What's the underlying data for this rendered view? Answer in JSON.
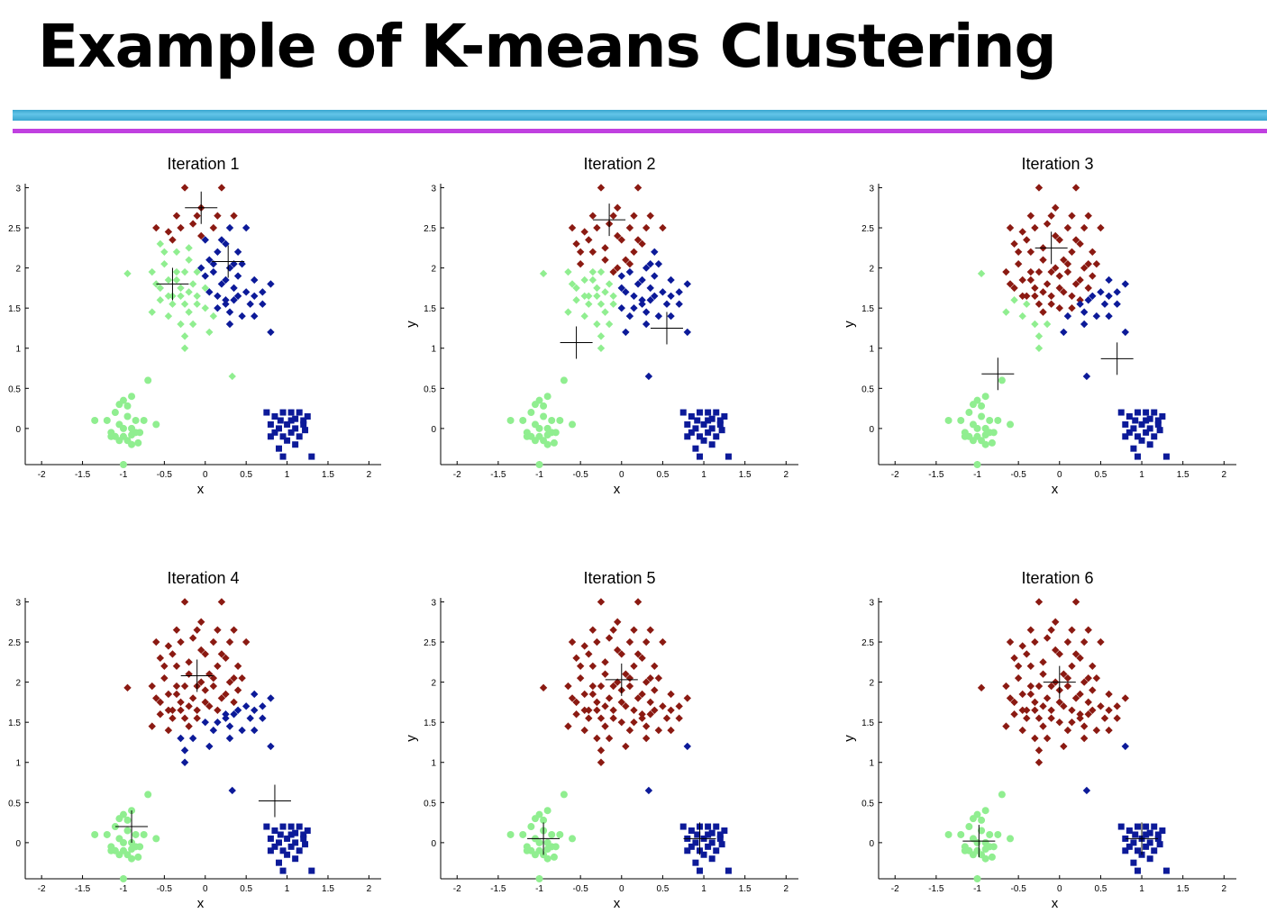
{
  "slide": {
    "title": "Example of K-means Clustering"
  },
  "colors": {
    "cluster_red": "#8b1a12",
    "cluster_blue": "#0c1a99",
    "cluster_green": "#90ee90",
    "rule_blue": "#4ab4dc",
    "rule_magenta": "#c040e0",
    "centroid": "#000000"
  },
  "chart_data": {
    "type": "scatter",
    "xlabel": "x",
    "ylabel": "y",
    "xlim": [
      -2.2,
      2.15
    ],
    "ylim": [
      -0.45,
      3.05
    ],
    "xticks": [
      "-2",
      "-1.5",
      "-1",
      "-0.5",
      "0",
      "0.5",
      "1",
      "1.5",
      "2"
    ],
    "xtick_values": [
      -2,
      -1.5,
      -1,
      -0.5,
      0,
      0.5,
      1,
      1.5,
      2
    ],
    "yticks": [
      "0",
      "0.5",
      "1",
      "1.5",
      "2",
      "2.5",
      "3"
    ],
    "ytick_values": [
      0,
      0.5,
      1,
      1.5,
      2,
      2.5,
      3
    ],
    "points": {
      "big": [
        [
          -0.25,
          3.0
        ],
        [
          0.2,
          3.0
        ],
        [
          -0.6,
          2.5
        ],
        [
          -0.45,
          2.45
        ],
        [
          -0.3,
          2.5
        ],
        [
          -0.15,
          2.55
        ],
        [
          0.1,
          2.5
        ],
        [
          0.35,
          2.65
        ],
        [
          -0.5,
          2.2
        ],
        [
          -0.35,
          2.2
        ],
        [
          0.0,
          2.35
        ],
        [
          0.25,
          2.3
        ],
        [
          -0.65,
          1.95
        ],
        [
          -0.5,
          2.05
        ],
        [
          -0.35,
          1.95
        ],
        [
          -0.2,
          2.1
        ],
        [
          -0.05,
          2.0
        ],
        [
          0.1,
          1.95
        ],
        [
          0.3,
          2.0
        ],
        [
          0.45,
          2.05
        ],
        [
          -0.6,
          1.8
        ],
        [
          -0.45,
          1.85
        ],
        [
          -0.3,
          1.75
        ],
        [
          -0.15,
          1.8
        ],
        [
          0.0,
          1.9
        ],
        [
          0.2,
          1.8
        ],
        [
          0.35,
          1.75
        ],
        [
          0.6,
          1.85
        ],
        [
          -0.55,
          1.6
        ],
        [
          -0.4,
          1.65
        ],
        [
          -0.25,
          1.55
        ],
        [
          -0.1,
          1.65
        ],
        [
          0.05,
          1.7
        ],
        [
          0.25,
          1.6
        ],
        [
          0.4,
          1.65
        ],
        [
          0.55,
          1.55
        ],
        [
          -0.65,
          1.45
        ],
        [
          -0.45,
          1.4
        ],
        [
          -0.2,
          1.45
        ],
        [
          0.0,
          1.5
        ],
        [
          0.15,
          1.5
        ],
        [
          0.3,
          1.45
        ],
        [
          0.5,
          1.7
        ],
        [
          0.7,
          1.7
        ],
        [
          0.8,
          1.8
        ],
        [
          -0.3,
          1.3
        ],
        [
          -0.1,
          1.55
        ],
        [
          0.1,
          1.4
        ],
        [
          -0.25,
          1.15
        ],
        [
          0.6,
          1.4
        ],
        [
          0.8,
          1.2
        ],
        [
          -0.4,
          2.35
        ],
        [
          -0.1,
          2.65
        ],
        [
          0.3,
          2.5
        ],
        [
          -0.55,
          2.3
        ],
        [
          0.15,
          2.2
        ],
        [
          -0.2,
          2.25
        ],
        [
          0.4,
          2.2
        ],
        [
          0.5,
          2.5
        ],
        [
          -0.05,
          2.4
        ],
        [
          0.15,
          2.65
        ],
        [
          -0.35,
          2.65
        ],
        [
          0.05,
          2.1
        ],
        [
          -0.25,
          1.95
        ],
        [
          0.25,
          1.85
        ],
        [
          -0.45,
          1.65
        ],
        [
          -0.15,
          1.3
        ],
        [
          0.45,
          1.4
        ],
        [
          0.0,
          1.75
        ],
        [
          0.3,
          1.3
        ],
        [
          -0.05,
          2.75
        ],
        [
          0.35,
          2.05
        ],
        [
          -0.35,
          1.85
        ],
        [
          0.6,
          1.65
        ],
        [
          0.25,
          1.55
        ],
        [
          -0.55,
          1.75
        ],
        [
          0.1,
          2.05
        ],
        [
          -0.2,
          1.7
        ],
        [
          0.2,
          2.35
        ],
        [
          -0.1,
          1.95
        ],
        [
          0.05,
          1.2
        ],
        [
          0.4,
          1.9
        ],
        [
          -0.95,
          1.93
        ],
        [
          -0.25,
          1.0
        ],
        [
          0.33,
          0.65
        ],
        [
          -0.4,
          1.55
        ],
        [
          0.15,
          1.65
        ],
        [
          -0.3,
          1.65
        ],
        [
          0.7,
          1.55
        ],
        [
          0.35,
          1.6
        ]
      ],
      "small": [
        [
          -1.2,
          0.1
        ],
        [
          -1.1,
          0.2
        ],
        [
          -1.0,
          0.35
        ],
        [
          -0.9,
          0.4
        ],
        [
          -1.05,
          0.05
        ],
        [
          -0.95,
          0.15
        ],
        [
          -0.85,
          0.1
        ],
        [
          -1.15,
          -0.05
        ],
        [
          -1.0,
          -0.1
        ],
        [
          -0.9,
          -0.2
        ],
        [
          -0.8,
          -0.05
        ],
        [
          -1.1,
          -0.1
        ],
        [
          -0.95,
          -0.15
        ],
        [
          -0.85,
          -0.05
        ],
        [
          -1.35,
          0.1
        ],
        [
          -1.05,
          0.3
        ],
        [
          -0.6,
          0.05
        ],
        [
          -1.0,
          0.0
        ],
        [
          -0.9,
          0.0
        ],
        [
          -0.75,
          0.1
        ],
        [
          -1.15,
          -0.1
        ],
        [
          -0.7,
          0.6
        ],
        [
          -1.0,
          -0.45
        ],
        [
          -0.82,
          -0.18
        ],
        [
          -0.95,
          0.28
        ],
        [
          -1.05,
          -0.15
        ],
        [
          -0.9,
          -0.08
        ]
      ],
      "squares": [
        [
          0.75,
          0.2
        ],
        [
          0.85,
          0.15
        ],
        [
          0.95,
          0.2
        ],
        [
          1.05,
          0.1
        ],
        [
          1.15,
          0.2
        ],
        [
          1.25,
          0.15
        ],
        [
          0.8,
          0.05
        ],
        [
          0.9,
          0.0
        ],
        [
          1.0,
          0.05
        ],
        [
          1.1,
          0.0
        ],
        [
          1.2,
          0.05
        ],
        [
          0.85,
          -0.05
        ],
        [
          0.95,
          -0.1
        ],
        [
          1.05,
          -0.05
        ],
        [
          1.15,
          -0.1
        ],
        [
          1.0,
          -0.15
        ],
        [
          0.9,
          -0.25
        ],
        [
          1.1,
          -0.2
        ],
        [
          0.95,
          -0.35
        ],
        [
          1.3,
          -0.35
        ],
        [
          1.05,
          0.2
        ],
        [
          1.2,
          0.1
        ],
        [
          0.8,
          -0.1
        ],
        [
          0.92,
          0.1
        ],
        [
          1.1,
          0.12
        ],
        [
          1.22,
          -0.02
        ]
      ]
    },
    "panels": [
      {
        "title": "Iteration 1",
        "show_ylabel": false,
        "rule": {
          "type": "nearest",
          "centroids": [
            [
              -0.05,
              2.75
            ],
            [
              -0.4,
              1.8
            ],
            [
              0.28,
              2.08
            ]
          ],
          "colors": [
            "red",
            "green",
            "blue"
          ],
          "bias": [
            0,
            0,
            0
          ]
        },
        "centroid_marks": [
          [
            -0.05,
            2.75
          ],
          [
            -0.4,
            1.8
          ],
          [
            0.28,
            2.08
          ]
        ]
      },
      {
        "title": "Iteration 2",
        "show_ylabel": true,
        "rule": {
          "type": "nearest",
          "centroids": [
            [
              -0.2,
              2.45
            ],
            [
              -0.55,
              1.55
            ],
            [
              0.5,
              1.6
            ]
          ],
          "colors": [
            "red",
            "green",
            "blue"
          ],
          "bias": [
            0,
            0,
            0
          ]
        },
        "centroid_marks": [
          [
            -0.15,
            2.6
          ],
          [
            -0.55,
            1.07
          ],
          [
            0.55,
            1.25
          ]
        ]
      },
      {
        "title": "Iteration 3",
        "show_ylabel": true,
        "rule": {
          "type": "nearest",
          "centroids": [
            [
              -0.05,
              2.05
            ],
            [
              -0.8,
              1.2
            ],
            [
              0.75,
              1.35
            ]
          ],
          "colors": [
            "red",
            "green",
            "blue"
          ],
          "bias": [
            0,
            0,
            0
          ]
        },
        "centroid_marks": [
          [
            -0.1,
            2.25
          ],
          [
            -0.75,
            0.68
          ],
          [
            0.7,
            0.87
          ]
        ]
      },
      {
        "title": "Iteration 4",
        "show_ylabel": false,
        "rule": {
          "type": "nearest",
          "centroids": [
            [
              0.05,
              1.95
            ],
            [
              -0.9,
              0.5
            ],
            [
              0.65,
              1.1
            ]
          ],
          "colors": [
            "red",
            "green",
            "blue"
          ],
          "bias": [
            0,
            0,
            0.35
          ]
        },
        "centroid_marks": [
          [
            -0.1,
            2.08
          ],
          [
            -0.9,
            0.2
          ],
          [
            0.85,
            0.52
          ]
        ]
      },
      {
        "title": "Iteration 5",
        "show_ylabel": true,
        "rule": {
          "type": "nearest",
          "centroids": [
            [
              0.0,
              2.0
            ],
            [
              -0.95,
              0.2
            ],
            [
              0.95,
              0.3
            ]
          ],
          "colors": [
            "red",
            "green",
            "blue"
          ],
          "bias": [
            0,
            0,
            0.3
          ]
        },
        "centroid_marks": [
          [
            0.0,
            2.03
          ],
          [
            -0.95,
            0.05
          ],
          [
            0.95,
            0.05
          ]
        ]
      },
      {
        "title": "Iteration 6",
        "show_ylabel": true,
        "rule": {
          "type": "nearest",
          "centroids": [
            [
              0.0,
              2.0
            ],
            [
              -0.95,
              0.2
            ],
            [
              0.95,
              0.3
            ]
          ],
          "colors": [
            "red",
            "green",
            "blue"
          ],
          "bias": [
            0,
            0,
            0.3
          ]
        },
        "centroid_marks": [
          [
            0.0,
            2.0
          ],
          [
            -0.98,
            0.02
          ],
          [
            1.0,
            0.05
          ]
        ]
      }
    ]
  }
}
